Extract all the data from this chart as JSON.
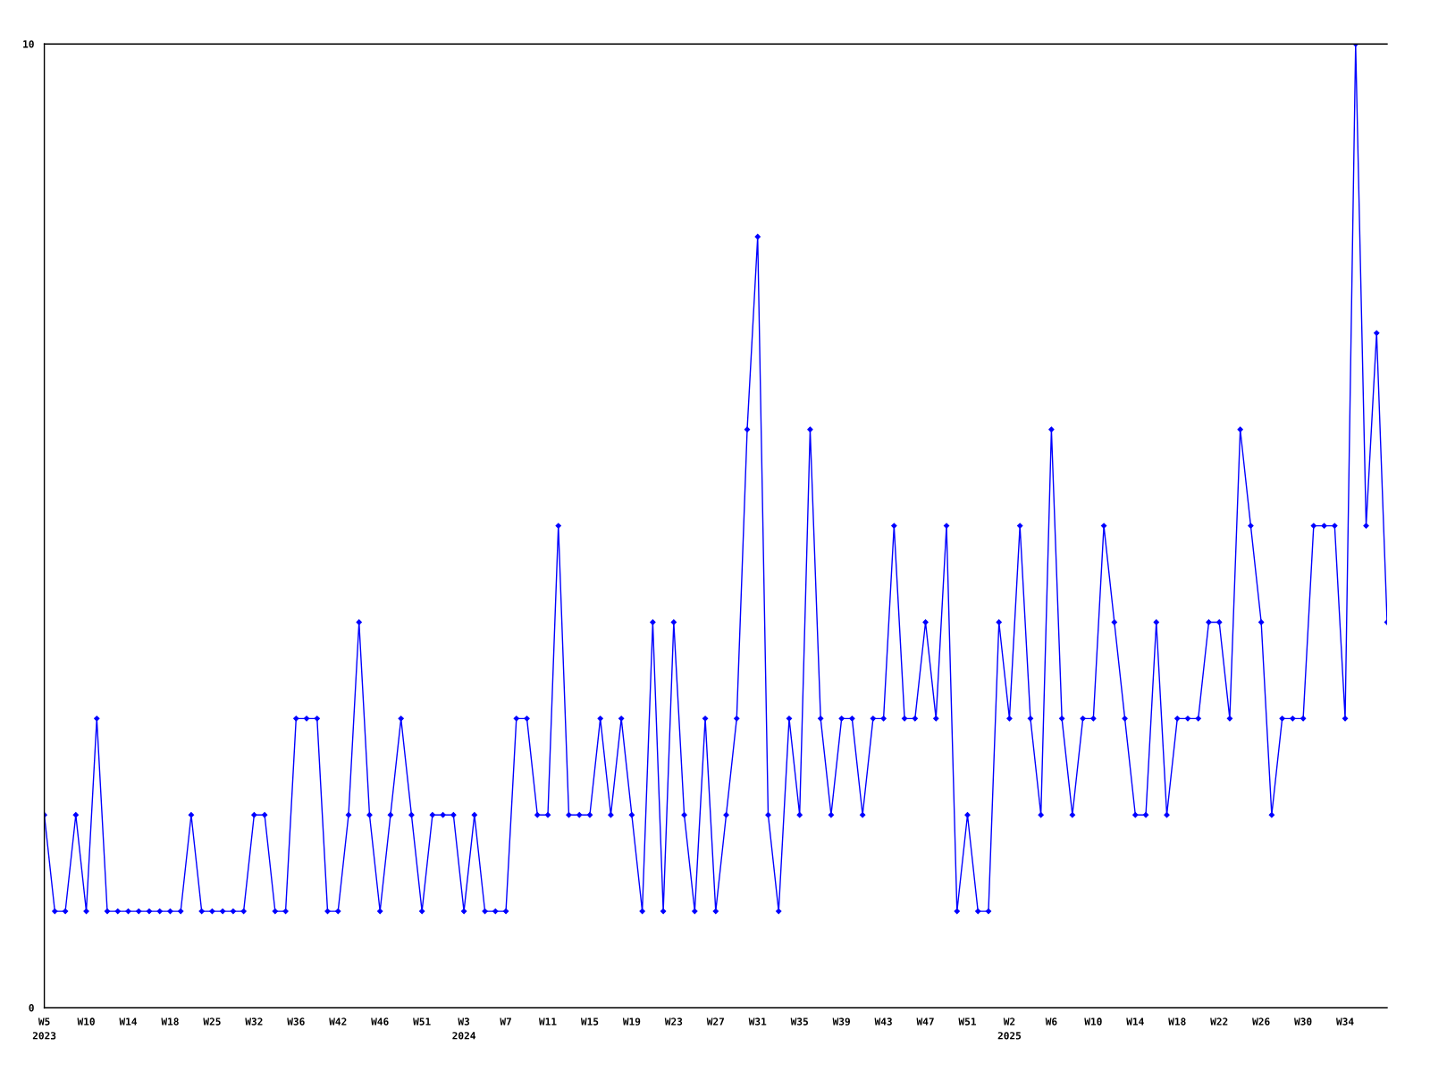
{
  "chart_data": {
    "type": "line",
    "categories": [
      "W5\n2023",
      null,
      null,
      null,
      "W10",
      null,
      null,
      null,
      "W14",
      null,
      null,
      null,
      "W18",
      null,
      null,
      null,
      "W25",
      null,
      null,
      null,
      "W32",
      null,
      null,
      null,
      "W36",
      null,
      null,
      null,
      "W42",
      null,
      null,
      null,
      "W46",
      null,
      null,
      null,
      "W51",
      null,
      null,
      null,
      "W3\n2024",
      null,
      null,
      null,
      "W7",
      null,
      null,
      null,
      "W11",
      null,
      null,
      null,
      "W15",
      null,
      null,
      null,
      "W19",
      null,
      null,
      null,
      "W23",
      null,
      null,
      null,
      "W27",
      null,
      null,
      null,
      "W31",
      null,
      null,
      null,
      "W35",
      null,
      null,
      null,
      "W39",
      null,
      null,
      null,
      "W43",
      null,
      null,
      null,
      "W47",
      null,
      null,
      null,
      "W51",
      null,
      null,
      null,
      "W2\n2025",
      null,
      null,
      null,
      "W6",
      null,
      null,
      null,
      "W10",
      null,
      null,
      null,
      "W14",
      null,
      null,
      null,
      "W18",
      null,
      null,
      null,
      "W22",
      null,
      null,
      null,
      "W26",
      null,
      null,
      null,
      "W30",
      null,
      null,
      null,
      "W34",
      null,
      null,
      null,
      null
    ],
    "series": [
      {
        "color": "#0000ff",
        "values": [
          2,
          1,
          1,
          2,
          1,
          3,
          1,
          1,
          1,
          1,
          1,
          1,
          1,
          1,
          2,
          1,
          1,
          1,
          1,
          1,
          2,
          2,
          1,
          1,
          3,
          3,
          3,
          1,
          1,
          2,
          4,
          2,
          1,
          2,
          3,
          2,
          1,
          2,
          2,
          2,
          1,
          2,
          1,
          1,
          1,
          3,
          3,
          2,
          2,
          5,
          2,
          2,
          2,
          3,
          2,
          3,
          2,
          1,
          4,
          1,
          4,
          2,
          1,
          3,
          1,
          2,
          3,
          6,
          8,
          2,
          1,
          3,
          2,
          6,
          3,
          2,
          3,
          3,
          2,
          3,
          3,
          5,
          3,
          3,
          4,
          3,
          5,
          1,
          2,
          1,
          1,
          4,
          3,
          5,
          3,
          2,
          6,
          3,
          2,
          3,
          3,
          5,
          4,
          3,
          2,
          2,
          4,
          2,
          3,
          3,
          3,
          4,
          4,
          3,
          6,
          5,
          4,
          2,
          3,
          3,
          3,
          5,
          5,
          5,
          3,
          10,
          5,
          7,
          4
        ]
      }
    ],
    "ylim": [
      0,
      10
    ],
    "yticks": [
      0,
      10
    ],
    "marker": "diamond",
    "line_style": "solid",
    "grid": false,
    "legend": false
  }
}
